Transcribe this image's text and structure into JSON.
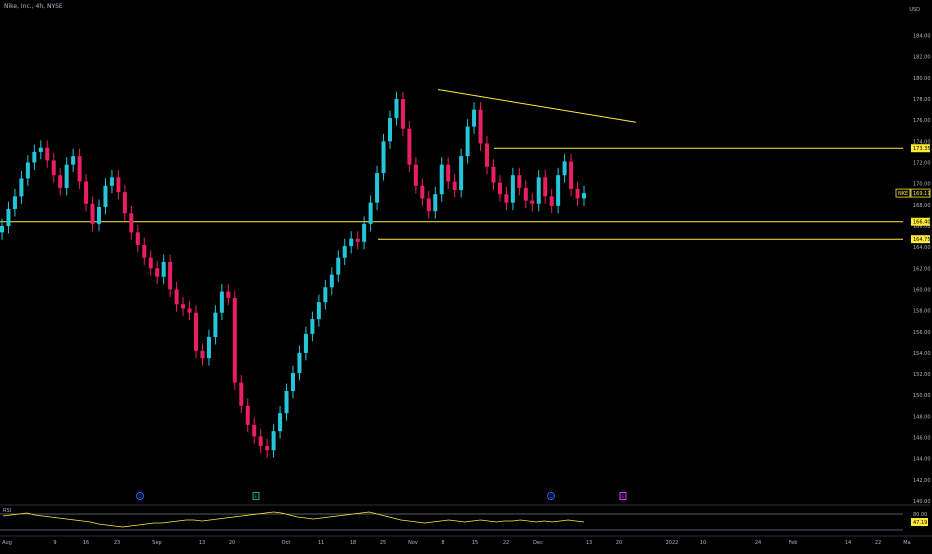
{
  "header": {
    "title": "Nike, Inc., 4h, NYSE",
    "currency": "USD"
  },
  "colors": {
    "background": "#000000",
    "up_candle": "#26c6da",
    "down_candle": "#e91e63",
    "trendline": "#ffeb3b",
    "rsi_line": "#ffeb3b",
    "axis_text": "#b2b5be"
  },
  "price_axis": {
    "ticks": [
      "184.00",
      "182.00",
      "180.00",
      "178.00",
      "176.00",
      "174.00",
      "172.00",
      "170.00",
      "168.00",
      "166.00",
      "164.00",
      "162.00",
      "160.00",
      "158.00",
      "156.00",
      "154.00",
      "152.00",
      "150.00",
      "148.00",
      "146.00",
      "144.00",
      "142.00",
      "140.00"
    ]
  },
  "price_labels": [
    {
      "text": "173.35",
      "value": 173.35,
      "style": "level"
    },
    {
      "text": "169.11",
      "value": 169.11,
      "style": "last",
      "symbol": "NKE"
    },
    {
      "text": "166.40",
      "value": 166.4,
      "style": "level"
    },
    {
      "text": "164.75",
      "value": 164.75,
      "style": "level"
    }
  ],
  "time_axis": {
    "ticks": [
      "Aug",
      "9",
      "16",
      "23",
      "Sep",
      "13",
      "20",
      "Oct",
      "11",
      "18",
      "25",
      "Nov",
      "8",
      "15",
      "22",
      "Dec",
      "13",
      "20",
      "2022",
      "10",
      "24",
      "Feb",
      "14",
      "22",
      "Ma"
    ]
  },
  "event_markers": [
    {
      "letter": "D",
      "color": "#2962ff"
    },
    {
      "letter": "E",
      "color": "#26a69a"
    },
    {
      "letter": "D",
      "color": "#2962ff"
    },
    {
      "letter": "E",
      "color": "#e040fb"
    }
  ],
  "rsi": {
    "label": "RSI",
    "upper_band": "80.00",
    "value": "47.19"
  },
  "chart_data": {
    "type": "candlestick",
    "symbol": "NKE",
    "y_range": [
      139,
      186
    ],
    "close_series": [
      166.0,
      167.6,
      168.8,
      170.5,
      172.0,
      173.0,
      173.4,
      172.2,
      170.8,
      169.6,
      171.8,
      172.6,
      170.2,
      168.1,
      166.2,
      167.8,
      169.8,
      170.6,
      169.2,
      167.2,
      165.4,
      164.2,
      163.0,
      162.0,
      161.2,
      162.6,
      160.0,
      158.6,
      158.2,
      157.8,
      154.2,
      153.5,
      155.5,
      157.8,
      159.8,
      159.2,
      151.2,
      149.0,
      147.2,
      146.1,
      145.2,
      144.8,
      146.6,
      148.3,
      150.4,
      152.1,
      154.0,
      155.8,
      157.2,
      158.8,
      160.2,
      161.4,
      163.0,
      164.1,
      164.8,
      164.5,
      166.2,
      168.2,
      171.0,
      174.0,
      176.2,
      178.0,
      175.2,
      171.8,
      169.8,
      168.6,
      167.4,
      169.0,
      171.8,
      170.2,
      169.4,
      172.6,
      175.4,
      177.0,
      173.8,
      171.6,
      170.1,
      169.0,
      168.2,
      170.8,
      169.6,
      168.4,
      168.1,
      170.6,
      168.8,
      167.9,
      170.8,
      172.1,
      169.5,
      168.6,
      169.11
    ],
    "lines": [
      {
        "kind": "trendline",
        "from": [
          "Nov 4",
          178.9
        ],
        "to": [
          "Dec 23",
          175.8
        ]
      },
      {
        "kind": "horizontal",
        "value": 173.35
      },
      {
        "kind": "horizontal",
        "value": 166.4
      },
      {
        "kind": "horizontal",
        "value": 164.75
      }
    ],
    "rsi_levels": {
      "upper": 80,
      "last": 47.19
    }
  }
}
